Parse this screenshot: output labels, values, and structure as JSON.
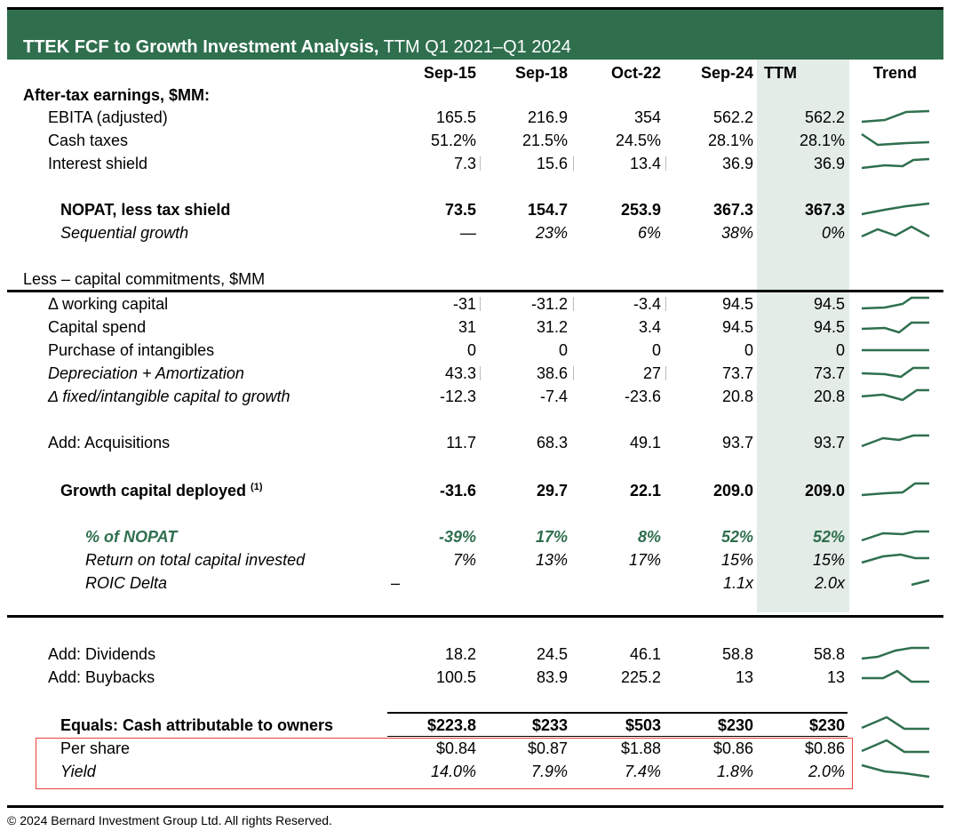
{
  "title": {
    "bold": "TTEK FCF to Growth Investment Analysis,",
    "rest": " TTM Q1 2021–Q1 2024"
  },
  "columns": [
    "Sep-15",
    "Sep-18",
    "Oct-22",
    "Sep-24",
    "TTM",
    "Trend"
  ],
  "sections": {
    "after_tax": "After-tax earnings, $MM:",
    "less_capital": "Less –  capital commitments, $MM"
  },
  "rows": [
    {
      "label": "EBITA (adjusted)",
      "values": [
        "165.5",
        "216.9",
        "354",
        "562.2",
        "562.2"
      ]
    },
    {
      "label": "Cash taxes",
      "values": [
        "51.2%",
        "21.5%",
        "24.5%",
        "28.1%",
        "28.1%"
      ]
    },
    {
      "label": "Interest shield",
      "values": [
        "7.3",
        "15.6",
        "13.4",
        "36.9",
        "36.9"
      ]
    },
    {
      "label": "NOPAT,  less tax shield",
      "values": [
        "73.5",
        "154.7",
        "253.9",
        "367.3",
        "367.3"
      ]
    },
    {
      "label": "Sequential growth",
      "values": [
        "—",
        "23%",
        "6%",
        "38%",
        "0%"
      ]
    },
    {
      "label": "Δ working capital",
      "values": [
        "-31",
        "-31.2",
        "-3.4",
        "94.5",
        "94.5"
      ]
    },
    {
      "label": "Capital spend",
      "values": [
        "31",
        "31.2",
        "3.4",
        "94.5",
        "94.5"
      ]
    },
    {
      "label": "Purchase of intangibles",
      "values": [
        "0",
        "0",
        "0",
        "0",
        "0"
      ]
    },
    {
      "label": "Depreciation + Amortization",
      "values": [
        "43.3",
        "38.6",
        "27",
        "73.7",
        "73.7"
      ]
    },
    {
      "label": "Δ fixed/intangible capital to growth",
      "values": [
        "-12.3",
        "-7.4",
        "-23.6",
        "20.8",
        "20.8"
      ]
    },
    {
      "label": "Add: Acquisitions",
      "values": [
        "11.7",
        "68.3",
        "49.1",
        "93.7",
        "93.7"
      ]
    },
    {
      "label": "Growth capital deployed",
      "sup": "(1)",
      "values": [
        "-31.6",
        "29.7",
        "22.1",
        "209.0",
        "209.0"
      ]
    },
    {
      "label": "% of NOPAT",
      "values": [
        "-39%",
        "17%",
        "8%",
        "52%",
        "52%"
      ]
    },
    {
      "label": "Return on total capital invested",
      "values": [
        "7%",
        "13%",
        "17%",
        "15%",
        "15%"
      ]
    },
    {
      "label": "ROIC Delta",
      "dash": "–",
      "values": [
        "",
        "",
        "",
        "1.1x",
        "2.0x"
      ]
    },
    {
      "label": "Add: Dividends",
      "values": [
        "18.2",
        "24.5",
        "46.1",
        "58.8",
        "58.8"
      ]
    },
    {
      "label": "Add: Buybacks",
      "values": [
        "100.5",
        "83.9",
        "225.2",
        "13",
        "13"
      ]
    },
    {
      "label": "Equals: Cash attributable to owners",
      "values": [
        "$223.8",
        "$233",
        "$503",
        "$230",
        "$230"
      ]
    },
    {
      "label": "Per share",
      "values": [
        "$0.84",
        "$0.87",
        "$1.88",
        "$0.86",
        "$0.86"
      ]
    },
    {
      "label": "Yield",
      "values": [
        "14.0%",
        "7.9%",
        "7.4%",
        "1.8%",
        "2.0%"
      ]
    }
  ],
  "colors": {
    "banner": "#2f6f4e",
    "accent_text": "#2f6f4e",
    "ttm_band": "#e3ece7",
    "highlight_box": "#e8413a"
  },
  "footer": "© 2024 Bernard Investment Group Ltd. All rights Reserved."
}
